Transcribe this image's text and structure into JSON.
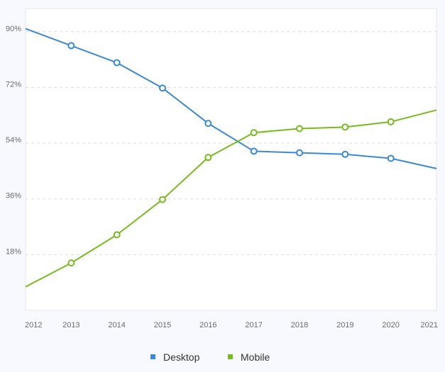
{
  "chart_data": {
    "type": "line",
    "title": "",
    "xlabel": "",
    "ylabel": "",
    "x": [
      2012,
      2013,
      2014,
      2015,
      2016,
      2017,
      2018,
      2019,
      2020,
      2021
    ],
    "x_tick_labels": [
      "2012",
      "2013",
      "2014",
      "2015",
      "2016",
      "2017",
      "2018",
      "2019",
      "2020",
      "2021"
    ],
    "y_tick_labels": [
      "18%",
      "36%",
      "54%",
      "72%",
      "90%"
    ],
    "y_ticks": [
      18,
      36,
      54,
      72,
      90
    ],
    "ylim": [
      0,
      97.5
    ],
    "grid": true,
    "legend_position": "bottom",
    "series": [
      {
        "name": "Desktop",
        "color": "#3b88d4",
        "values": [
          91.0,
          85.5,
          80.0,
          71.8,
          60.4,
          51.4,
          50.9,
          50.4,
          49.1,
          45.8
        ],
        "markers": [
          false,
          true,
          true,
          true,
          true,
          true,
          true,
          true,
          true,
          false
        ]
      },
      {
        "name": "Mobile",
        "color": "#77bb1c",
        "values": [
          7.6,
          15.3,
          24.4,
          35.8,
          49.4,
          57.4,
          58.7,
          59.2,
          60.9,
          64.7
        ],
        "markers": [
          false,
          true,
          true,
          true,
          true,
          true,
          true,
          true,
          true,
          false
        ]
      }
    ]
  }
}
